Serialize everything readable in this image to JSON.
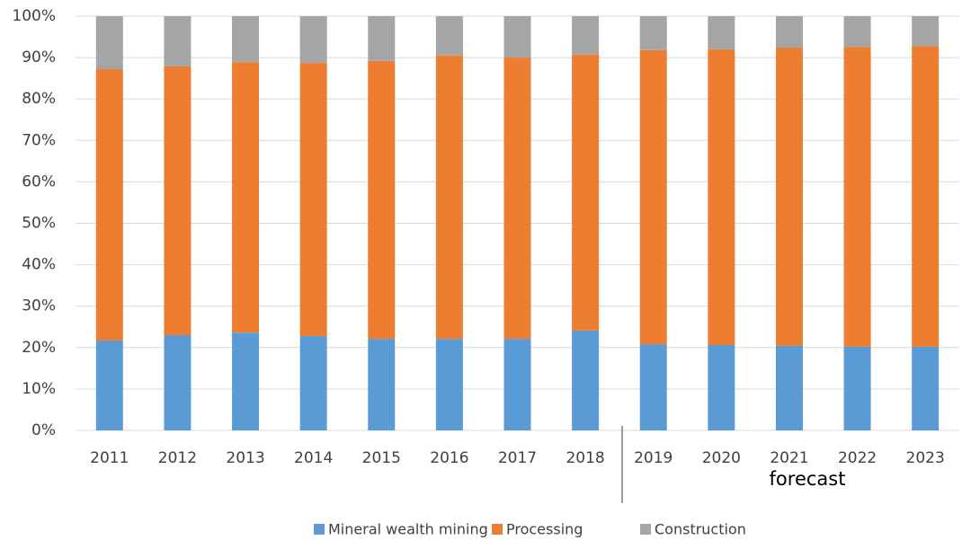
{
  "chart_data": {
    "type": "stacked_bar",
    "categories": [
      "2011",
      "2012",
      "2013",
      "2014",
      "2015",
      "2016",
      "2017",
      "2018",
      "2019",
      "2020",
      "2021",
      "2022",
      "2023"
    ],
    "series": [
      {
        "name": "Mineral wealth mining",
        "color": "#5b9bd5",
        "values": [
          21.7,
          23.0,
          23.6,
          22.8,
          22.1,
          22.1,
          22.1,
          24.1,
          20.8,
          20.6,
          20.4,
          20.2,
          20.2
        ]
      },
      {
        "name": "Processing",
        "color": "#ed7d31",
        "values": [
          65.5,
          64.9,
          65.3,
          65.9,
          67.1,
          68.4,
          67.9,
          66.6,
          71.0,
          71.4,
          72.0,
          72.4,
          72.6
        ]
      },
      {
        "name": "Construction",
        "color": "#a5a5a5",
        "values": [
          12.8,
          12.1,
          11.1,
          11.3,
          10.8,
          9.5,
          10.0,
          9.3,
          8.2,
          8.0,
          7.6,
          7.4,
          7.2
        ]
      }
    ],
    "ylim": [
      0,
      100
    ],
    "yticks": [
      {
        "value": 0,
        "label": "0%"
      },
      {
        "value": 10,
        "label": "10%"
      },
      {
        "value": 20,
        "label": "20%"
      },
      {
        "value": 30,
        "label": "30%"
      },
      {
        "value": 40,
        "label": "40%"
      },
      {
        "value": 50,
        "label": "50%"
      },
      {
        "value": 60,
        "label": "60%"
      },
      {
        "value": 70,
        "label": "70%"
      },
      {
        "value": 80,
        "label": "80%"
      },
      {
        "value": 90,
        "label": "90%"
      },
      {
        "value": 100,
        "label": "100%"
      }
    ],
    "grid": true,
    "annotation": "forecast",
    "legend": "bottom"
  }
}
